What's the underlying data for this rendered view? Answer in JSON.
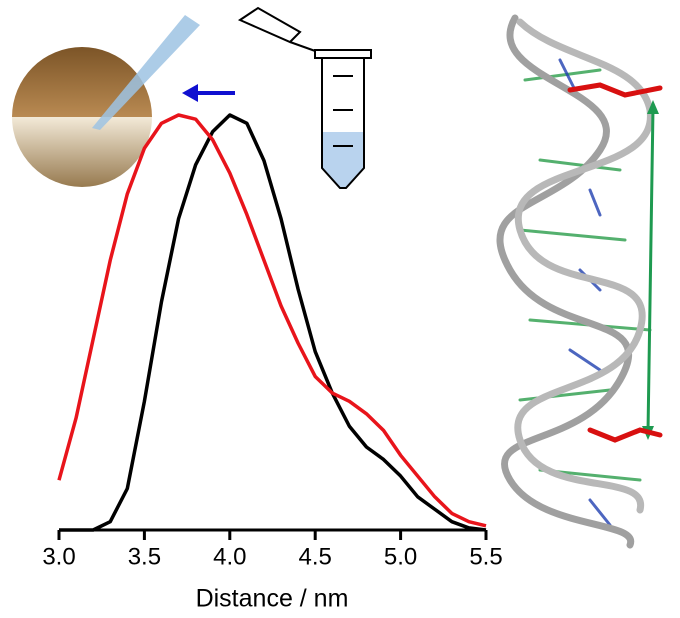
{
  "chart_data": {
    "type": "line",
    "xlabel": "Distance / nm",
    "x": [
      3.0,
      3.1,
      3.2,
      3.3,
      3.4,
      3.5,
      3.6,
      3.7,
      3.8,
      3.9,
      4.0,
      4.1,
      4.2,
      4.3,
      4.4,
      4.5,
      4.6,
      4.7,
      4.8,
      4.9,
      5.0,
      5.1,
      5.2,
      5.3,
      5.4,
      5.5
    ],
    "series": [
      {
        "color": "#000000",
        "values": [
          0,
          0,
          0,
          0.02,
          0.1,
          0.31,
          0.55,
          0.75,
          0.88,
          0.96,
          1.0,
          0.98,
          0.89,
          0.75,
          0.58,
          0.43,
          0.33,
          0.25,
          0.2,
          0.17,
          0.13,
          0.08,
          0.05,
          0.02,
          0.005,
          0
        ]
      },
      {
        "color": "#e8141b",
        "values": [
          0.12,
          0.27,
          0.46,
          0.65,
          0.81,
          0.92,
          0.98,
          1.0,
          0.99,
          0.94,
          0.86,
          0.76,
          0.65,
          0.54,
          0.45,
          0.37,
          0.33,
          0.31,
          0.28,
          0.24,
          0.18,
          0.13,
          0.08,
          0.04,
          0.02,
          0.01
        ]
      }
    ],
    "xlim": [
      3.0,
      5.5
    ],
    "xticks": [
      {
        "value": 3.0,
        "label": "3.0"
      },
      3.5,
      {
        "value": 4.0,
        "label": "4.0"
      },
      4.5,
      {
        "value": 5.0,
        "label": "5.0"
      },
      5.5
    ],
    "ylim": [
      0,
      1
    ]
  }
}
